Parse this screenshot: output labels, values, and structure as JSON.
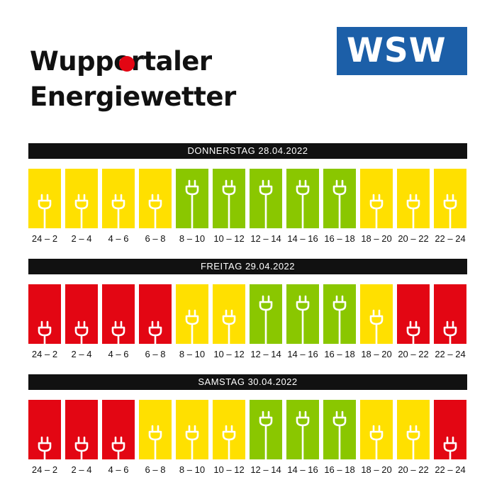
{
  "title": {
    "line1": "Wuppertaler",
    "line2": "Energiewetter"
  },
  "logo": {
    "text": "WSW"
  },
  "colors": {
    "green": "#8ac700",
    "yellow": "#ffe000",
    "red": "#e30613",
    "header": "#111111",
    "logo_blue": "#1c5fa8"
  },
  "days": [
    {
      "header": "DONNERSTAG 28.04.2022",
      "slots": [
        {
          "label": "24 – 2",
          "level": "yellow"
        },
        {
          "label": "2 – 4",
          "level": "yellow"
        },
        {
          "label": "4 – 6",
          "level": "yellow"
        },
        {
          "label": "6 – 8",
          "level": "yellow"
        },
        {
          "label": "8 – 10",
          "level": "green"
        },
        {
          "label": "10 – 12",
          "level": "green"
        },
        {
          "label": "12 – 14",
          "level": "green"
        },
        {
          "label": "14 – 16",
          "level": "green"
        },
        {
          "label": "16 – 18",
          "level": "green"
        },
        {
          "label": "18 – 20",
          "level": "yellow"
        },
        {
          "label": "20 – 22",
          "level": "yellow"
        },
        {
          "label": "22 – 24",
          "level": "yellow"
        }
      ]
    },
    {
      "header": "FREITAG 29.04.2022",
      "slots": [
        {
          "label": "24 – 2",
          "level": "red"
        },
        {
          "label": "2 – 4",
          "level": "red"
        },
        {
          "label": "4 – 6",
          "level": "red"
        },
        {
          "label": "6 – 8",
          "level": "red"
        },
        {
          "label": "8 – 10",
          "level": "yellow"
        },
        {
          "label": "10 – 12",
          "level": "yellow"
        },
        {
          "label": "12 – 14",
          "level": "green"
        },
        {
          "label": "14 – 16",
          "level": "green"
        },
        {
          "label": "16 – 18",
          "level": "green"
        },
        {
          "label": "18 – 20",
          "level": "yellow"
        },
        {
          "label": "20 – 22",
          "level": "red"
        },
        {
          "label": "22 – 24",
          "level": "red"
        }
      ]
    },
    {
      "header": "SAMSTAG 30.04.2022",
      "slots": [
        {
          "label": "24 – 2",
          "level": "red"
        },
        {
          "label": "2 – 4",
          "level": "red"
        },
        {
          "label": "4 – 6",
          "level": "red"
        },
        {
          "label": "6 – 8",
          "level": "yellow"
        },
        {
          "label": "8 – 10",
          "level": "yellow"
        },
        {
          "label": "10 – 12",
          "level": "yellow"
        },
        {
          "label": "12 – 14",
          "level": "green"
        },
        {
          "label": "14 – 16",
          "level": "green"
        },
        {
          "label": "16 – 18",
          "level": "green"
        },
        {
          "label": "18 – 20",
          "level": "yellow"
        },
        {
          "label": "20 – 22",
          "level": "yellow"
        },
        {
          "label": "22 – 24",
          "level": "red"
        }
      ]
    }
  ]
}
